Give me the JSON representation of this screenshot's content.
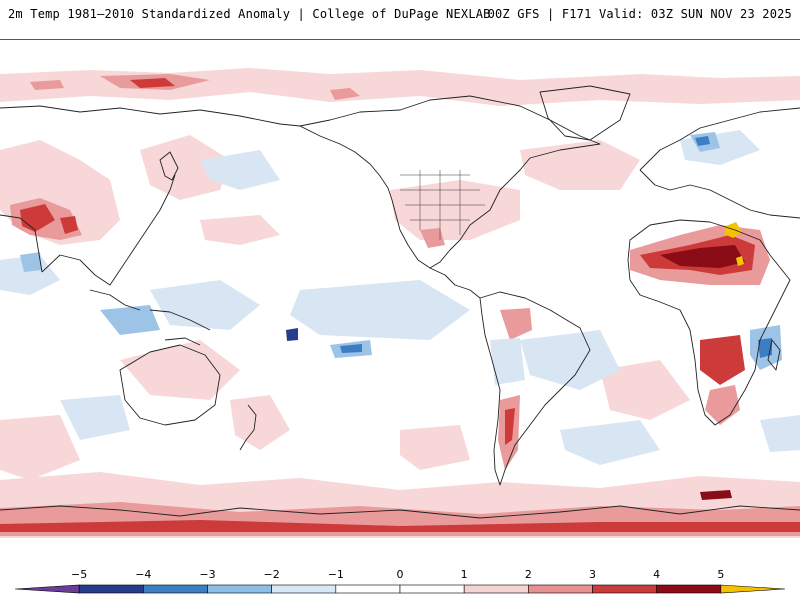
{
  "header": {
    "title": "2m Temp 1981–2010 Standardized Anomaly | College of DuPage NEXLAB",
    "run_info": "00Z GFS | F171 Valid: 03Z SUN NOV 23 2025"
  },
  "colorbar": {
    "ticks": [
      "−5",
      "−4",
      "−3",
      "−2",
      "−1",
      "0",
      "1",
      "2",
      "3",
      "4",
      "5"
    ],
    "colors": [
      "#6a3d9a",
      "#253b8c",
      "#3a7fc4",
      "#8cbfe6",
      "#d9e8f5",
      "#ffffff",
      "#ffffff",
      "#f6d3d3",
      "#e88f8f",
      "#c83c3c",
      "#8c0a14",
      "#f5c000"
    ]
  },
  "palette": {
    "warm_light": "#f7d7d7",
    "warm_mid": "#e99a9a",
    "warm_strong": "#cc3a3a",
    "warm_extreme": "#8a0c16",
    "yellow": "#f5c400",
    "cool_light": "#d8e6f4",
    "cool_mid": "#9dc3e6",
    "cool_strong": "#3c7ec2",
    "cool_extreme": "#273d8e",
    "coast": "#222222"
  }
}
